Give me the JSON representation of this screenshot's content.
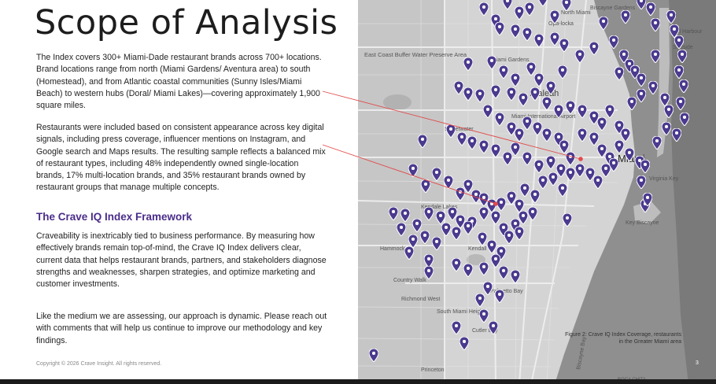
{
  "title": "Scope of Analysis",
  "paragraphs": [
    "The Index covers 300+ Miami-Dade restaurant brands across 700+ locations. Brand locations range from north (Miami Gardens/ Aventura area) to south (Homestead), and from Atlantic coastal communities (Sunny Isles/Miami Beach) to western hubs (Doral/ Miami Lakes)—covering approximately 1,900 square miles.",
    "Restaurants were included based on consistent appearance across key digital signals, including press coverage, influencer mentions on Instagram, and Google search and Maps results. The resulting sample reflects a balanced mix of restaurant types, including 48% independently owned single-location brands, 17% multi-location brands, and 35% restaurant brands owned by restaurant groups that manage multiple concepts."
  ],
  "framework": {
    "heading": "The Crave IQ Index Framework",
    "paragraphs": [
      "Craveability is inextricably tied to business performance. By measuring how effectively brands remain top-of-mind, the Crave IQ Index delivers clear, current data that helps restaurant brands, partners, and stakeholders diagnose strengths and weaknesses, sharpen strategies, and optimize marketing and customer investments.",
      "Like the medium we are assessing, our approach is dynamic. Please reach out with comments that will help us continue to improve our methodology and key findings."
    ]
  },
  "footer": {
    "copyright": "Copyright © 2026 Crave Insight. All rights reserved.",
    "page_number": "3"
  },
  "map": {
    "caption": "Figure 2: Crave IQ Index Coverage, restaurants in the Greater Miami area",
    "pin_color": "#4b3a8e",
    "labels": {
      "biscayne_gardens": "Biscayne Gardens",
      "north_miami": "North Miami",
      "opa_locka": "Opa-locka",
      "east_coast_buffer": "East Coast Buffer Water Preserve Area",
      "miami_gardens": "Miami Gardens",
      "hialeah": "Hialeah",
      "sweetwater": "Sweetwater",
      "miami_intl_airport": "Miami International Airport",
      "miami": "Miami",
      "virginia_key": "Virginia Key",
      "key_biscayne": "Key Biscayne",
      "kendale_lakes": "Kendale Lakes",
      "hammocks": "Hammock",
      "kendall": "Kendall",
      "country_walk": "Country Walk",
      "richmond_west": "Richmond West",
      "south_miami_heights": "South Miami Heights",
      "palmetto_bay": "Palmetto Bay",
      "cutler_bay": "Cutler Bay",
      "princeton": "Princeton",
      "bal_harbour": "Bal Harbour",
      "surfside": "Surfside",
      "biscayne_bay": "Biscayne Bay",
      "boca_chita": "BOCA CHITA"
    }
  }
}
